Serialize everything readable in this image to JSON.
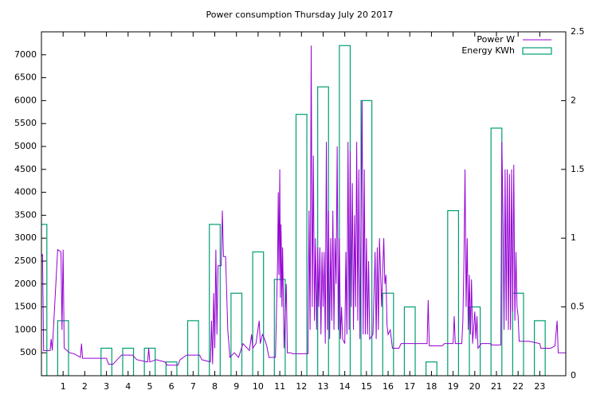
{
  "chart_data": {
    "type": "line",
    "title": "Power consumption Thursday July 20 2017",
    "xlim": [
      0,
      24.2
    ],
    "xticks": [
      1,
      2,
      3,
      4,
      5,
      6,
      7,
      8,
      9,
      10,
      11,
      12,
      13,
      14,
      15,
      16,
      17,
      18,
      19,
      20,
      21,
      22,
      23
    ],
    "ylim": [
      0,
      7500
    ],
    "yticks": [
      500,
      1000,
      1500,
      2000,
      2500,
      3000,
      3500,
      4000,
      4500,
      5000,
      5500,
      6000,
      6500,
      7000
    ],
    "y2lim": [
      0,
      2.5
    ],
    "y2ticks": [
      0,
      0.5,
      1,
      1.5,
      2,
      2.5
    ],
    "legend": "top-right",
    "series": [
      {
        "name": "Power W",
        "color": "#9400d3",
        "type": "line",
        "x": [
          0.0,
          0.05,
          0.1,
          0.4,
          0.45,
          0.5,
          0.75,
          0.9,
          0.95,
          1.0,
          1.05,
          1.3,
          1.5,
          1.8,
          1.85,
          1.9,
          2.5,
          3.0,
          3.1,
          3.3,
          3.5,
          3.7,
          4.2,
          4.4,
          4.9,
          4.95,
          5.0,
          5.3,
          5.7,
          5.8,
          6.3,
          6.4,
          6.7,
          7.3,
          7.4,
          7.8,
          7.85,
          7.9,
          7.95,
          8.0,
          8.05,
          8.1,
          8.15,
          8.3,
          8.35,
          8.4,
          8.5,
          8.6,
          8.7,
          8.9,
          9.1,
          9.2,
          9.3,
          9.6,
          9.7,
          9.75,
          9.9,
          10.05,
          10.1,
          10.2,
          10.3,
          10.4,
          10.5,
          10.8,
          10.9,
          10.93,
          10.96,
          11.0,
          11.03,
          11.06,
          11.1,
          11.13,
          11.2,
          11.3,
          11.35,
          11.5,
          11.6,
          12.3,
          12.35,
          12.4,
          12.45,
          12.5,
          12.55,
          12.6,
          12.65,
          12.7,
          12.75,
          12.8,
          12.85,
          12.9,
          12.95,
          13.0,
          13.05,
          13.1,
          13.15,
          13.2,
          13.25,
          13.3,
          13.35,
          13.4,
          13.45,
          13.5,
          13.55,
          13.6,
          13.65,
          13.7,
          13.75,
          13.8,
          13.85,
          13.9,
          14.0,
          14.05,
          14.1,
          14.15,
          14.2,
          14.25,
          14.3,
          14.35,
          14.4,
          14.45,
          14.5,
          14.55,
          14.6,
          14.65,
          14.7,
          14.8,
          14.85,
          14.9,
          14.95,
          15.0,
          15.05,
          15.1,
          15.15,
          15.3,
          15.4,
          15.45,
          15.5,
          15.55,
          15.6,
          15.7,
          15.8,
          15.85,
          15.9,
          15.95,
          16.0,
          16.1,
          16.2,
          16.5,
          16.6,
          17.0,
          17.5,
          17.8,
          17.85,
          17.9,
          18.5,
          18.6,
          19.0,
          19.05,
          19.1,
          19.4,
          19.45,
          19.5,
          19.55,
          19.6,
          19.65,
          19.7,
          19.75,
          19.8,
          19.85,
          19.9,
          20.0,
          20.05,
          20.1,
          20.15,
          20.3,
          20.7,
          20.8,
          21.2,
          21.25,
          21.3,
          21.35,
          21.4,
          21.45,
          21.5,
          21.55,
          21.6,
          21.65,
          21.7,
          21.75,
          21.8,
          21.85,
          21.9,
          21.95,
          22.0,
          22.05,
          22.5,
          23.0,
          23.05,
          23.5,
          23.7,
          23.8,
          23.85,
          24.2
        ],
        "values": [
          2600,
          2650,
          550,
          550,
          800,
          550,
          2750,
          2700,
          1000,
          2750,
          600,
          500,
          480,
          400,
          700,
          380,
          380,
          380,
          250,
          250,
          350,
          450,
          450,
          350,
          300,
          600,
          300,
          350,
          300,
          230,
          230,
          350,
          450,
          450,
          350,
          300,
          1200,
          250,
          1800,
          600,
          2750,
          900,
          2400,
          2400,
          3600,
          2600,
          2600,
          1000,
          400,
          500,
          400,
          550,
          700,
          550,
          900,
          600,
          700,
          1200,
          700,
          900,
          800,
          650,
          400,
          400,
          2500,
          4000,
          2200,
          4500,
          1700,
          3300,
          1500,
          2800,
          600,
          2000,
          500,
          500,
          480,
          480,
          3600,
          1000,
          7200,
          1500,
          4800,
          1200,
          3000,
          1000,
          2800,
          1500,
          2800,
          900,
          2700,
          1500,
          2700,
          700,
          5100,
          1000,
          3600,
          800,
          3000,
          1200,
          3600,
          1000,
          3000,
          2000,
          5000,
          1000,
          3000,
          800,
          1500,
          800,
          700,
          2700,
          900,
          5100,
          1000,
          4900,
          1500,
          4200,
          1000,
          3500,
          1500,
          5100,
          1200,
          4500,
          800,
          6000,
          900,
          4500,
          900,
          3000,
          900,
          2500,
          800,
          900,
          2700,
          800,
          2800,
          1000,
          3000,
          1500,
          3000,
          2000,
          2200,
          1100,
          900,
          1000,
          600,
          600,
          700,
          700,
          700,
          700,
          1650,
          650,
          650,
          700,
          700,
          1300,
          700,
          700,
          1200,
          2500,
          4500,
          1500,
          3000,
          1000,
          2200,
          900,
          2100,
          700,
          1400,
          800,
          1300,
          600,
          700,
          700,
          670,
          670,
          5100,
          3600,
          1000,
          4500,
          1200,
          4500,
          1000,
          4400,
          1000,
          4500,
          1400,
          4600,
          1200,
          2700,
          1500,
          1300,
          750,
          750,
          700,
          600,
          600,
          650,
          1200,
          500,
          500
        ]
      },
      {
        "name": "Energy KWh",
        "color": "#009e73",
        "type": "boxes",
        "axis": "y2",
        "x": [
          0,
          1,
          2,
          3,
          4,
          5,
          6,
          7,
          8,
          9,
          10,
          11,
          12,
          13,
          14,
          15,
          16,
          17,
          18,
          19,
          20,
          21,
          22,
          23
        ],
        "values": [
          1.1,
          0.4,
          0,
          0.2,
          0.2,
          0.2,
          0.1,
          0.4,
          1.1,
          0.6,
          0.9,
          0.7,
          1.9,
          2.1,
          2.4,
          2.0,
          0.6,
          0.5,
          0.1,
          1.2,
          0.5,
          1.8,
          0.6,
          0.4
        ]
      }
    ]
  }
}
